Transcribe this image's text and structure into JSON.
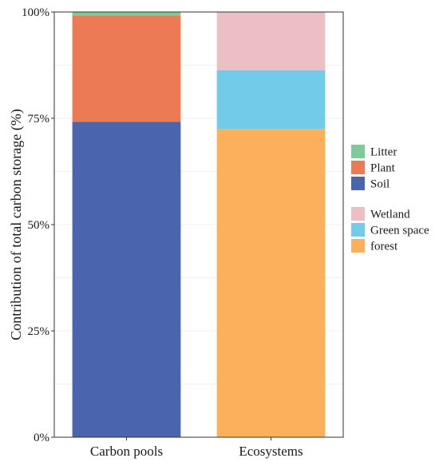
{
  "chart_data": {
    "type": "bar",
    "stacked": true,
    "categories": [
      "Carbon pools",
      "Ecosystems"
    ],
    "ylabel": "Contribution of total carbon storage (%)",
    "xlabel": "",
    "ylim": [
      0,
      100
    ],
    "yticks": [
      0,
      25,
      50,
      75,
      100
    ],
    "ytick_labels": [
      "0%",
      "25%",
      "50%",
      "75%",
      "100%"
    ],
    "grid": true,
    "legend_position": "right",
    "series": [
      {
        "name": "Soil",
        "color": "#4a64ad",
        "values": [
          74.2,
          0
        ]
      },
      {
        "name": "Plant",
        "color": "#ec7a55",
        "values": [
          25.0,
          0
        ]
      },
      {
        "name": "Litter",
        "color": "#7ecb98",
        "values": [
          0.8,
          0
        ]
      },
      {
        "name": "forest",
        "color": "#fdb05c",
        "values": [
          0,
          72.5
        ]
      },
      {
        "name": "Green space",
        "color": "#72cbe8",
        "values": [
          0,
          13.8
        ]
      },
      {
        "name": "Wetland",
        "color": "#ebbfc3",
        "values": [
          0,
          13.7
        ]
      }
    ],
    "legend_groups": [
      [
        "Litter",
        "Plant",
        "Soil"
      ],
      [
        "Wetland",
        "Green space",
        "forest"
      ]
    ]
  }
}
